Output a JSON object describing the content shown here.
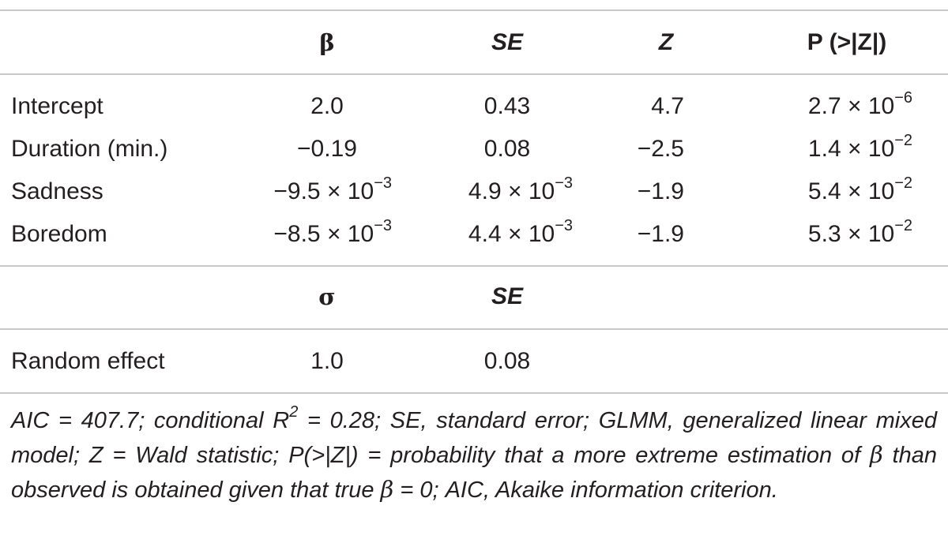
{
  "table": {
    "headers": {
      "beta": "β",
      "se": "SE",
      "z": "Z",
      "p": "P (>|Z|)"
    },
    "rows": [
      {
        "label": "Intercept",
        "beta": {
          "base": "2.0",
          "exp": ""
        },
        "se": {
          "base": "0.43",
          "exp": ""
        },
        "z": "4.7",
        "p": {
          "base": "2.7 × 10",
          "exp": "−6"
        }
      },
      {
        "label": "Duration (min.)",
        "beta": {
          "base": "−0.19",
          "exp": ""
        },
        "se": {
          "base": "0.08",
          "exp": ""
        },
        "z": "−2.5",
        "p": {
          "base": "1.4 × 10",
          "exp": "−2"
        }
      },
      {
        "label": "Sadness",
        "beta": {
          "base": "−9.5 × 10",
          "exp": "−3"
        },
        "se": {
          "base": "4.9 × 10",
          "exp": "−3"
        },
        "z": "−1.9",
        "p": {
          "base": "5.4 × 10",
          "exp": "−2"
        }
      },
      {
        "label": "Boredom",
        "beta": {
          "base": "−8.5 × 10",
          "exp": "−3"
        },
        "se": {
          "base": "4.4 × 10",
          "exp": "−3"
        },
        "z": "−1.9",
        "p": {
          "base": "5.3 × 10",
          "exp": "−2"
        }
      }
    ],
    "random_headers": {
      "sigma": "σ",
      "se": "SE"
    },
    "random_row": {
      "label": "Random effect",
      "sigma": "1.0",
      "se": "0.08"
    }
  },
  "footnote": {
    "part1": "AIC = 407.7; conditional R",
    "r2_exp": "2",
    "part2": " = 0.28; SE, standard error; GLMM, generalized linear mixed model; Z = Wald statistic; P(>|Z|) = probability that a more extreme estimation of ",
    "beta1": "β",
    "part3": " than observed is obtained given that true ",
    "beta2": "β",
    "part4": " = 0; AIC, Akaike information criterion."
  }
}
